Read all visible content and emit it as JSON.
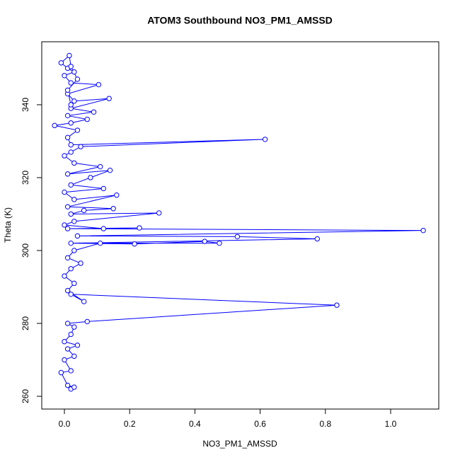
{
  "chart_data": {
    "type": "line_points",
    "title": "ATOM3 Southbound NO3_PM1_AMSSD",
    "xlabel": "NO3_PM1_AMSSD",
    "ylabel": "Theta (K)",
    "color": "#0000ff",
    "xlim": [
      -0.0694,
      1.1475
    ],
    "ylim": [
      256.5,
      357.28
    ],
    "xticks": [
      {
        "value": 0,
        "label": "0.0"
      },
      0.2,
      0.4,
      0.6,
      0.8,
      {
        "value": 1,
        "label": "1.0"
      }
    ],
    "yticks": [
      260,
      280,
      300,
      320,
      340
    ],
    "x": [
      0.02,
      0.03,
      0.01,
      -0.01,
      0.02,
      0.0,
      0.03,
      0.01,
      0.04,
      0.0,
      0.02,
      0.03,
      0.01,
      0.07,
      0.835,
      0.02,
      0.06,
      0.01,
      0.03,
      0.0,
      0.02,
      0.05,
      0.01,
      0.03,
      0.11,
      0.475,
      0.43,
      0.215,
      0.02,
      0.775,
      0.53,
      0.04,
      1.1,
      0.01,
      0.23,
      0.12,
      0.0,
      0.03,
      0.29,
      0.02,
      0.06,
      0.15,
      0.01,
      0.16,
      0.03,
      0.0,
      0.12,
      0.02,
      0.08,
      0.14,
      0.01,
      0.11,
      0.03,
      0.0,
      0.02,
      0.05,
      0.615,
      0.02,
      0.01,
      0.04,
      -0.03,
      0.02,
      0.07,
      0.01,
      0.09,
      0.02,
      0.137,
      0.03,
      0.01,
      0.105,
      0.02,
      0.0,
      0.03,
      0.01,
      -0.01,
      0.015,
      0.02,
      0.04,
      0.01,
      0.02
    ],
    "values": [
      262,
      262.5,
      263,
      266.5,
      267,
      270,
      271,
      273,
      274,
      275,
      277,
      279,
      280,
      280.5,
      285,
      288,
      286,
      289,
      291,
      293,
      295,
      296.5,
      298,
      300,
      302,
      302,
      302.5,
      301.8,
      302,
      303.2,
      303.8,
      304,
      305.5,
      306,
      306.2,
      306,
      307,
      308,
      310.3,
      310,
      311,
      311.5,
      312,
      315.2,
      314,
      316,
      317,
      318,
      320,
      322,
      321,
      323,
      324,
      326,
      327,
      328.5,
      330.5,
      329,
      331,
      333,
      334.3,
      335,
      336,
      337,
      338,
      339,
      341.7,
      341,
      343,
      345.5,
      346,
      348,
      349,
      350,
      351.5,
      353.5,
      350.5,
      347,
      344,
      340
    ]
  }
}
